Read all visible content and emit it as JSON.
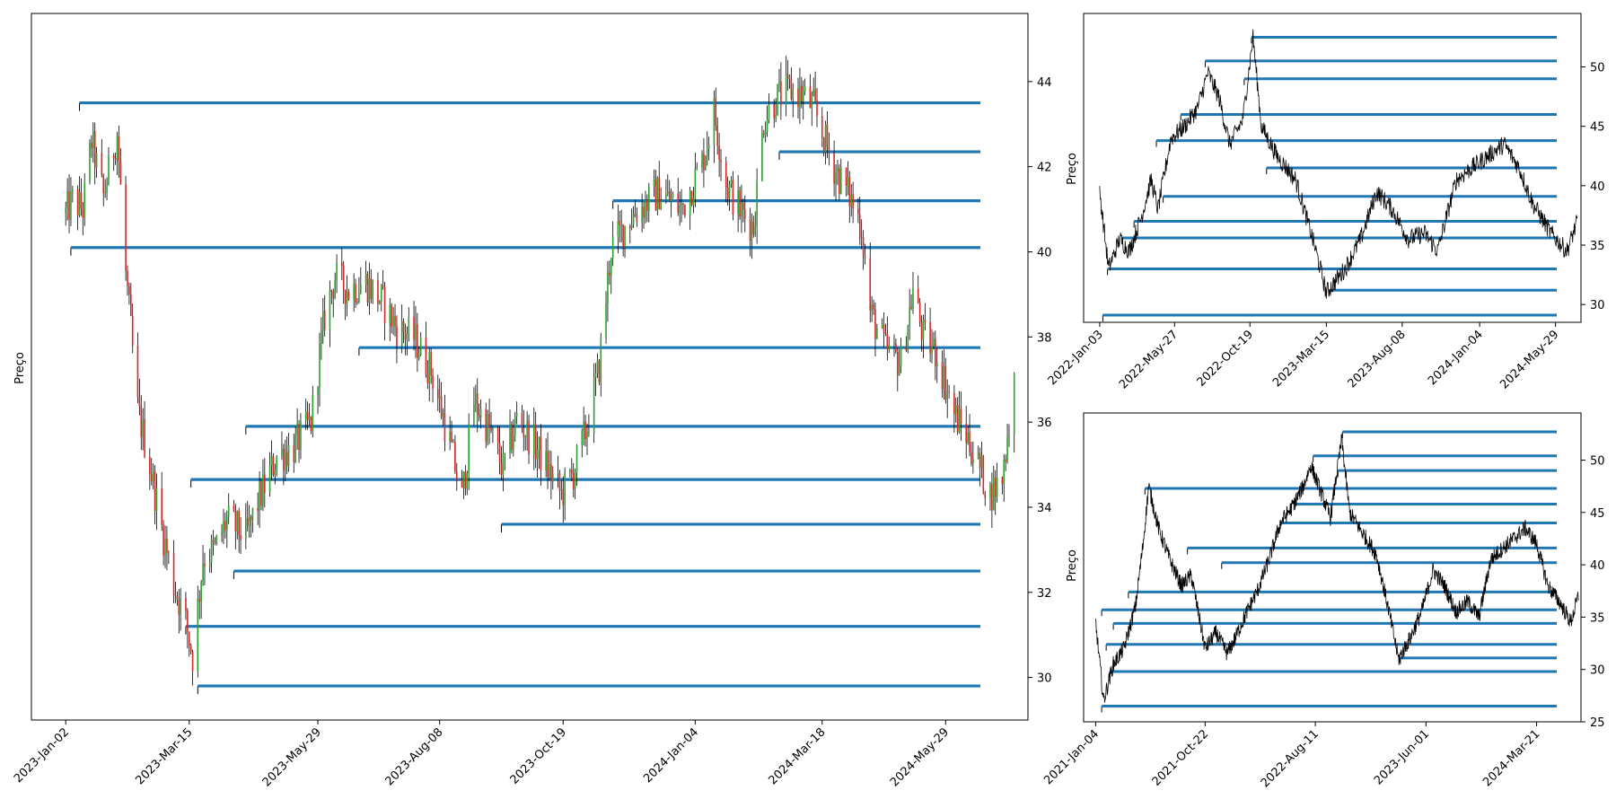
{
  "colors": {
    "level_line": "#1f77b4",
    "candle_up": "#2ca02c",
    "candle_down": "#d62728",
    "wick": "#000000",
    "price_line": "#000000",
    "frame": "#000000"
  },
  "chart_data": [
    {
      "type": "candlestick",
      "title": "",
      "ylabel": "Preço",
      "xlabel": "",
      "ylim": [
        29.0,
        45.6
      ],
      "x_range": [
        "2022-12-13",
        "2024-07-16"
      ],
      "yticks": [
        30,
        32,
        34,
        36,
        38,
        40,
        42,
        44
      ],
      "xticks": [
        "2023-Jan-02",
        "2023-Mar-15",
        "2023-May-29",
        "2023-Aug-08",
        "2023-Oct-19",
        "2024-Jan-04",
        "2024-Mar-18",
        "2024-May-29"
      ],
      "price_path": [
        [
          "2023-01-02",
          40.9
        ],
        [
          "2023-01-06",
          41.2
        ],
        [
          "2023-01-12",
          41.0
        ],
        [
          "2023-01-17",
          42.6
        ],
        [
          "2023-01-24",
          41.3
        ],
        [
          "2023-02-01",
          42.8
        ],
        [
          "2023-02-06",
          39.5
        ],
        [
          "2023-02-13",
          36.3
        ],
        [
          "2023-02-20",
          35.0
        ],
        [
          "2023-02-27",
          33.5
        ],
        [
          "2023-03-06",
          32.2
        ],
        [
          "2023-03-13",
          31.3
        ],
        [
          "2023-03-17",
          30.5
        ],
        [
          "2023-03-23",
          32.8
        ],
        [
          "2023-03-30",
          33.0
        ],
        [
          "2023-04-06",
          33.7
        ],
        [
          "2023-04-17",
          33.3
        ],
        [
          "2023-04-24",
          34.1
        ],
        [
          "2023-05-05",
          35.2
        ],
        [
          "2023-05-15",
          35.4
        ],
        [
          "2023-05-25",
          36.0
        ],
        [
          "2023-06-02",
          38.5
        ],
        [
          "2023-06-08",
          39.4
        ],
        [
          "2023-06-16",
          39.1
        ],
        [
          "2023-06-26",
          39.3
        ],
        [
          "2023-07-06",
          38.8
        ],
        [
          "2023-07-14",
          38.2
        ],
        [
          "2023-07-24",
          38.0
        ],
        [
          "2023-08-03",
          37.2
        ],
        [
          "2023-08-14",
          35.5
        ],
        [
          "2023-08-21",
          34.2
        ],
        [
          "2023-08-28",
          36.5
        ],
        [
          "2023-09-06",
          35.8
        ],
        [
          "2023-09-14",
          34.9
        ],
        [
          "2023-09-22",
          36.1
        ],
        [
          "2023-10-02",
          35.5
        ],
        [
          "2023-10-10",
          34.9
        ],
        [
          "2023-10-18",
          34.3
        ],
        [
          "2023-10-25",
          34.8
        ],
        [
          "2023-11-02",
          35.9
        ],
        [
          "2023-11-09",
          37.3
        ],
        [
          "2023-11-16",
          40.1
        ],
        [
          "2023-11-27",
          40.8
        ],
        [
          "2023-12-05",
          41.1
        ],
        [
          "2023-12-14",
          41.4
        ],
        [
          "2023-12-27",
          41.0
        ],
        [
          "2024-01-08",
          42.1
        ],
        [
          "2024-01-15",
          43.3
        ],
        [
          "2024-01-22",
          41.6
        ],
        [
          "2024-01-31",
          40.9
        ],
        [
          "2024-02-07",
          40.6
        ],
        [
          "2024-02-13",
          43.1
        ],
        [
          "2024-02-20",
          43.6
        ],
        [
          "2024-02-28",
          43.8
        ],
        [
          "2024-03-06",
          43.7
        ],
        [
          "2024-03-13",
          43.4
        ],
        [
          "2024-03-18",
          42.8
        ],
        [
          "2024-03-25",
          42.0
        ],
        [
          "2024-04-03",
          41.3
        ],
        [
          "2024-04-10",
          40.6
        ],
        [
          "2024-04-15",
          38.6
        ],
        [
          "2024-04-24",
          37.7
        ],
        [
          "2024-05-03",
          37.4
        ],
        [
          "2024-05-10",
          39.1
        ],
        [
          "2024-05-16",
          38.0
        ],
        [
          "2024-05-24",
          37.6
        ],
        [
          "2024-06-03",
          36.2
        ],
        [
          "2024-06-10",
          35.7
        ],
        [
          "2024-06-17",
          35.0
        ],
        [
          "2024-06-24",
          34.3
        ],
        [
          "2024-07-01",
          34.7
        ],
        [
          "2024-07-08",
          37.0
        ]
      ],
      "levels": [
        {
          "price": 43.5,
          "start": "2023-01-10"
        },
        {
          "price": 42.35,
          "start": "2024-02-22"
        },
        {
          "price": 41.2,
          "start": "2023-11-17"
        },
        {
          "price": 40.1,
          "start": "2023-01-05"
        },
        {
          "price": 37.75,
          "start": "2023-06-22"
        },
        {
          "price": 35.9,
          "start": "2023-04-17"
        },
        {
          "price": 34.65,
          "start": "2023-03-16"
        },
        {
          "price": 33.6,
          "start": "2023-09-13"
        },
        {
          "price": 32.5,
          "start": "2023-04-10"
        },
        {
          "price": 31.2,
          "start": "2023-03-13"
        },
        {
          "price": 29.8,
          "start": "2023-03-20"
        }
      ]
    },
    {
      "type": "line",
      "title": "",
      "ylabel": "Preço",
      "xlabel": "",
      "ylim": [
        28.5,
        54.5
      ],
      "x_range": [
        "2021-12-03",
        "2024-07-17"
      ],
      "yticks": [
        30,
        35,
        40,
        45,
        50
      ],
      "xticks": [
        "2022-Jan-03",
        "2022-May-27",
        "2022-Oct-19",
        "2023-Mar-15",
        "2023-Aug-08",
        "2024-Jan-04",
        "2024-May-29"
      ],
      "price_path": [
        [
          "2022-01-03",
          39.5
        ],
        [
          "2022-01-20",
          33.0
        ],
        [
          "2022-02-10",
          35.5
        ],
        [
          "2022-03-01",
          34.5
        ],
        [
          "2022-03-25",
          37.5
        ],
        [
          "2022-04-12",
          40.5
        ],
        [
          "2022-04-25",
          38.0
        ],
        [
          "2022-05-20",
          44.0
        ],
        [
          "2022-06-15",
          45.0
        ],
        [
          "2022-07-10",
          46.5
        ],
        [
          "2022-07-30",
          49.5
        ],
        [
          "2022-08-20",
          47.5
        ],
        [
          "2022-09-10",
          43.5
        ],
        [
          "2022-10-05",
          45.5
        ],
        [
          "2022-10-25",
          52.5
        ],
        [
          "2022-11-10",
          45.0
        ],
        [
          "2022-12-10",
          42.5
        ],
        [
          "2023-01-15",
          40.5
        ],
        [
          "2023-02-20",
          35.0
        ],
        [
          "2023-03-15",
          31.0
        ],
        [
          "2023-04-20",
          33.0
        ],
        [
          "2023-05-20",
          35.5
        ],
        [
          "2023-06-20",
          39.5
        ],
        [
          "2023-07-20",
          38.0
        ],
        [
          "2023-08-20",
          35.5
        ],
        [
          "2023-09-20",
          36.0
        ],
        [
          "2023-10-15",
          34.5
        ],
        [
          "2023-11-20",
          40.5
        ],
        [
          "2023-12-20",
          41.5
        ],
        [
          "2024-01-20",
          42.5
        ],
        [
          "2024-02-20",
          43.5
        ],
        [
          "2024-03-20",
          41.5
        ],
        [
          "2024-04-15",
          38.5
        ],
        [
          "2024-05-20",
          36.0
        ],
        [
          "2024-06-20",
          34.5
        ],
        [
          "2024-07-10",
          37.0
        ]
      ],
      "levels": [
        {
          "price": 52.5,
          "start": "2022-10-22"
        },
        {
          "price": 50.5,
          "start": "2022-07-25"
        },
        {
          "price": 49.0,
          "start": "2022-10-08"
        },
        {
          "price": 46.0,
          "start": "2022-06-08"
        },
        {
          "price": 43.8,
          "start": "2022-04-22"
        },
        {
          "price": 41.5,
          "start": "2022-11-20"
        },
        {
          "price": 39.1,
          "start": "2022-05-05"
        },
        {
          "price": 37.0,
          "start": "2022-03-10"
        },
        {
          "price": 35.6,
          "start": "2022-02-15"
        },
        {
          "price": 33.0,
          "start": "2022-01-18"
        },
        {
          "price": 31.2,
          "start": "2023-03-20"
        },
        {
          "price": 29.1,
          "start": "2022-01-09"
        }
      ]
    },
    {
      "type": "line",
      "title": "",
      "ylabel": "Preço",
      "xlabel": "",
      "ylim": [
        25,
        54.5
      ],
      "x_range": [
        "2020-12-03",
        "2024-07-17"
      ],
      "yticks": [
        25,
        30,
        35,
        40,
        45,
        50
      ],
      "xticks": [
        "2021-Jan-04",
        "2021-Oct-22",
        "2022-Aug-11",
        "2023-Jun-01",
        "2024-Mar-21"
      ],
      "price_path": [
        [
          "2021-01-04",
          34.5
        ],
        [
          "2021-01-25",
          27.0
        ],
        [
          "2021-02-20",
          30.5
        ],
        [
          "2021-03-20",
          32.0
        ],
        [
          "2021-04-20",
          36.0
        ],
        [
          "2021-05-10",
          42.0
        ],
        [
          "2021-05-25",
          47.5
        ],
        [
          "2021-06-20",
          43.5
        ],
        [
          "2021-07-20",
          40.5
        ],
        [
          "2021-08-20",
          38.0
        ],
        [
          "2021-09-15",
          39.0
        ],
        [
          "2021-10-22",
          32.0
        ],
        [
          "2021-11-20",
          33.5
        ],
        [
          "2021-12-20",
          31.5
        ],
        [
          "2022-01-10",
          33.0
        ],
        [
          "2022-02-10",
          35.5
        ],
        [
          "2022-03-10",
          37.5
        ],
        [
          "2022-04-10",
          40.5
        ],
        [
          "2022-05-10",
          44.0
        ],
        [
          "2022-06-10",
          45.5
        ],
        [
          "2022-07-10",
          47.5
        ],
        [
          "2022-07-30",
          49.5
        ],
        [
          "2022-08-25",
          47.0
        ],
        [
          "2022-09-20",
          44.5
        ],
        [
          "2022-10-20",
          52.0
        ],
        [
          "2022-11-10",
          45.0
        ],
        [
          "2022-12-15",
          43.0
        ],
        [
          "2023-01-20",
          41.0
        ],
        [
          "2023-02-20",
          36.0
        ],
        [
          "2023-03-20",
          31.0
        ],
        [
          "2023-04-20",
          33.0
        ],
        [
          "2023-05-20",
          35.5
        ],
        [
          "2023-06-20",
          39.5
        ],
        [
          "2023-07-20",
          38.0
        ],
        [
          "2023-08-20",
          35.5
        ],
        [
          "2023-09-20",
          36.5
        ],
        [
          "2023-10-20",
          35.0
        ],
        [
          "2023-11-20",
          40.5
        ],
        [
          "2023-12-20",
          41.5
        ],
        [
          "2024-01-20",
          42.5
        ],
        [
          "2024-02-20",
          43.5
        ],
        [
          "2024-03-21",
          42.0
        ],
        [
          "2024-04-20",
          38.0
        ],
        [
          "2024-05-20",
          36.5
        ],
        [
          "2024-06-20",
          34.5
        ],
        [
          "2024-07-10",
          37.0
        ]
      ],
      "levels": [
        {
          "price": 52.7,
          "start": "2022-10-22"
        },
        {
          "price": 50.4,
          "start": "2022-08-05"
        },
        {
          "price": 49.0,
          "start": "2022-10-10"
        },
        {
          "price": 47.3,
          "start": "2021-05-15"
        },
        {
          "price": 45.8,
          "start": "2022-06-15"
        },
        {
          "price": 44.0,
          "start": "2022-05-10"
        },
        {
          "price": 41.6,
          "start": "2021-09-05"
        },
        {
          "price": 40.2,
          "start": "2021-12-05"
        },
        {
          "price": 37.4,
          "start": "2021-04-01"
        },
        {
          "price": 35.7,
          "start": "2021-01-20"
        },
        {
          "price": 34.4,
          "start": "2021-02-20"
        },
        {
          "price": 32.4,
          "start": "2021-02-01"
        },
        {
          "price": 31.1,
          "start": "2023-03-25"
        },
        {
          "price": 29.8,
          "start": "2021-02-10"
        },
        {
          "price": 26.5,
          "start": "2021-01-20"
        }
      ]
    }
  ]
}
